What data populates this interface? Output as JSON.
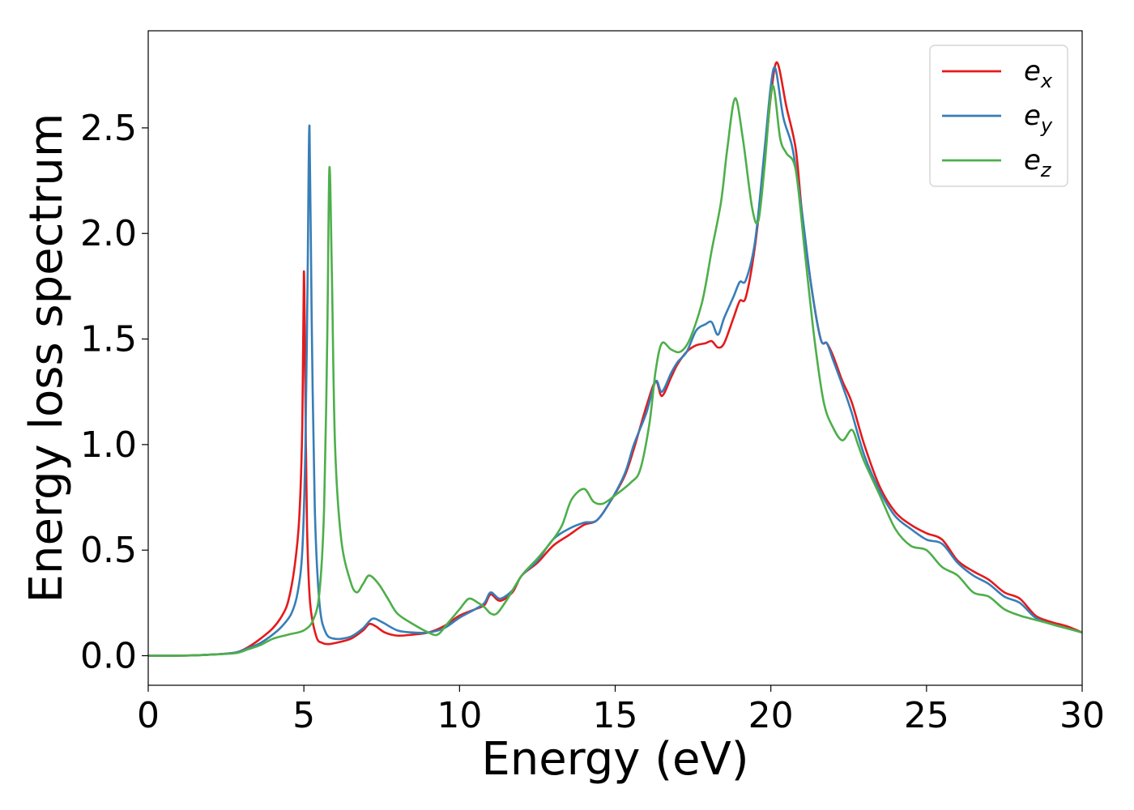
{
  "chart_data": {
    "type": "line",
    "xlabel": "Energy (eV)",
    "ylabel": "Energy loss spectrum",
    "xlim": [
      0,
      30
    ],
    "ylim": [
      -0.14,
      2.96
    ],
    "xticks": [
      0,
      5,
      10,
      15,
      20,
      25,
      30
    ],
    "xtick_labels": [
      "0",
      "5",
      "10",
      "15",
      "20",
      "25",
      "30"
    ],
    "yticks": [
      0.0,
      0.5,
      1.0,
      1.5,
      2.0,
      2.5
    ],
    "ytick_labels": [
      "0.0",
      "0.5",
      "1.0",
      "1.5",
      "2.0",
      "2.5"
    ],
    "grid": false,
    "legend_position": "top-right",
    "series": [
      {
        "name": "e",
        "subscript": "x",
        "color": "#e41a1c",
        "x": [
          0,
          1,
          2,
          2.8,
          3.2,
          3.6,
          4.0,
          4.3,
          4.5,
          4.7,
          4.85,
          4.95,
          5.0,
          5.05,
          5.1,
          5.2,
          5.4,
          5.6,
          5.8,
          6.0,
          6.5,
          6.9,
          7.1,
          7.3,
          7.6,
          8.0,
          8.5,
          9.0,
          9.5,
          10.0,
          10.5,
          10.8,
          11.0,
          11.3,
          11.7,
          12.0,
          12.5,
          13.0,
          13.5,
          14.0,
          14.4,
          14.8,
          15.3,
          15.6,
          16.0,
          16.3,
          16.5,
          16.8,
          17.0,
          17.3,
          17.6,
          17.9,
          18.1,
          18.3,
          18.5,
          18.8,
          19.0,
          19.2,
          19.5,
          19.8,
          20.0,
          20.2,
          20.5,
          20.8,
          21.0,
          21.3,
          21.6,
          21.8,
          22.0,
          22.3,
          22.6,
          23.0,
          23.5,
          24.0,
          24.5,
          25.0,
          25.5,
          26.0,
          26.5,
          27.0,
          27.5,
          28.0,
          28.5,
          29.0,
          29.5,
          30.0
        ],
        "values": [
          0.0,
          0.0,
          0.005,
          0.015,
          0.04,
          0.08,
          0.13,
          0.19,
          0.26,
          0.42,
          0.65,
          1.1,
          1.82,
          1.2,
          0.62,
          0.25,
          0.09,
          0.06,
          0.055,
          0.06,
          0.08,
          0.12,
          0.15,
          0.14,
          0.11,
          0.095,
          0.1,
          0.11,
          0.14,
          0.19,
          0.22,
          0.24,
          0.29,
          0.26,
          0.3,
          0.38,
          0.44,
          0.52,
          0.57,
          0.62,
          0.64,
          0.72,
          0.85,
          0.98,
          1.18,
          1.3,
          1.23,
          1.32,
          1.38,
          1.44,
          1.47,
          1.48,
          1.49,
          1.46,
          1.48,
          1.6,
          1.68,
          1.7,
          1.95,
          2.35,
          2.65,
          2.81,
          2.6,
          2.4,
          2.1,
          1.75,
          1.5,
          1.48,
          1.42,
          1.3,
          1.2,
          1.0,
          0.8,
          0.68,
          0.62,
          0.58,
          0.55,
          0.45,
          0.4,
          0.36,
          0.3,
          0.27,
          0.19,
          0.16,
          0.14,
          0.11
        ]
      },
      {
        "name": "e",
        "subscript": "y",
        "color": "#377eb8",
        "x": [
          0,
          1,
          2,
          2.8,
          3.2,
          3.6,
          4.0,
          4.3,
          4.6,
          4.8,
          4.95,
          5.05,
          5.12,
          5.18,
          5.25,
          5.35,
          5.5,
          5.7,
          6.0,
          6.5,
          6.9,
          7.2,
          7.5,
          8.0,
          8.5,
          9.0,
          9.5,
          10.0,
          10.5,
          10.8,
          11.0,
          11.3,
          11.7,
          12.0,
          12.5,
          13.0,
          13.5,
          14.0,
          14.4,
          14.8,
          15.3,
          15.6,
          16.0,
          16.3,
          16.5,
          16.8,
          17.0,
          17.3,
          17.6,
          17.9,
          18.1,
          18.3,
          18.5,
          18.8,
          19.0,
          19.2,
          19.5,
          19.8,
          20.0,
          20.15,
          20.4,
          20.7,
          21.0,
          21.3,
          21.6,
          21.8,
          22.0,
          22.3,
          22.6,
          23.0,
          23.5,
          24.0,
          24.5,
          25.0,
          25.5,
          26.0,
          26.5,
          27.0,
          27.5,
          28.0,
          28.5,
          29.0,
          29.5,
          30.0
        ],
        "values": [
          0.0,
          0.0,
          0.005,
          0.015,
          0.035,
          0.06,
          0.1,
          0.14,
          0.2,
          0.3,
          0.5,
          1.0,
          1.8,
          2.51,
          1.6,
          0.7,
          0.25,
          0.11,
          0.08,
          0.09,
          0.13,
          0.175,
          0.16,
          0.12,
          0.11,
          0.11,
          0.13,
          0.18,
          0.22,
          0.25,
          0.3,
          0.27,
          0.31,
          0.38,
          0.45,
          0.55,
          0.6,
          0.63,
          0.64,
          0.72,
          0.86,
          1.0,
          1.15,
          1.3,
          1.25,
          1.34,
          1.39,
          1.44,
          1.54,
          1.57,
          1.58,
          1.52,
          1.6,
          1.7,
          1.77,
          1.78,
          1.97,
          2.4,
          2.7,
          2.78,
          2.55,
          2.4,
          2.1,
          1.75,
          1.5,
          1.48,
          1.4,
          1.28,
          1.15,
          0.95,
          0.78,
          0.66,
          0.6,
          0.55,
          0.53,
          0.44,
          0.38,
          0.34,
          0.28,
          0.25,
          0.18,
          0.15,
          0.13,
          0.11
        ]
      },
      {
        "name": "e",
        "subscript": "z",
        "color": "#4daf4a",
        "x": [
          0,
          1,
          2,
          2.8,
          3.2,
          3.6,
          4.0,
          4.5,
          5.0,
          5.3,
          5.5,
          5.65,
          5.75,
          5.82,
          5.9,
          6.0,
          6.2,
          6.5,
          6.7,
          6.9,
          7.1,
          7.4,
          7.7,
          8.0,
          8.5,
          9.0,
          9.3,
          9.6,
          10.0,
          10.3,
          10.6,
          10.8,
          11.0,
          11.2,
          11.5,
          12.0,
          12.5,
          13.0,
          13.3,
          13.6,
          14.0,
          14.3,
          14.6,
          15.0,
          15.5,
          15.8,
          16.1,
          16.3,
          16.5,
          16.8,
          17.1,
          17.4,
          17.8,
          18.1,
          18.4,
          18.6,
          18.85,
          19.1,
          19.4,
          19.6,
          19.8,
          20.05,
          20.3,
          20.5,
          20.8,
          21.1,
          21.4,
          21.7,
          22.0,
          22.3,
          22.6,
          22.8,
          23.0,
          23.5,
          24.0,
          24.5,
          25.0,
          25.5,
          26.0,
          26.5,
          27.0,
          27.5,
          28.0,
          28.5,
          29.0,
          29.5,
          30.0
        ],
        "values": [
          0.0,
          0.0,
          0.005,
          0.012,
          0.03,
          0.05,
          0.08,
          0.1,
          0.12,
          0.17,
          0.3,
          0.7,
          1.5,
          2.31,
          1.8,
          1.0,
          0.55,
          0.35,
          0.3,
          0.34,
          0.38,
          0.34,
          0.27,
          0.2,
          0.15,
          0.11,
          0.1,
          0.15,
          0.22,
          0.27,
          0.25,
          0.23,
          0.2,
          0.2,
          0.26,
          0.38,
          0.46,
          0.55,
          0.62,
          0.74,
          0.79,
          0.73,
          0.72,
          0.76,
          0.82,
          0.88,
          1.1,
          1.35,
          1.48,
          1.45,
          1.44,
          1.5,
          1.68,
          1.92,
          2.15,
          2.4,
          2.64,
          2.45,
          2.12,
          2.06,
          2.32,
          2.7,
          2.45,
          2.38,
          2.3,
          1.9,
          1.5,
          1.2,
          1.08,
          1.02,
          1.07,
          1.0,
          0.92,
          0.76,
          0.6,
          0.52,
          0.5,
          0.42,
          0.38,
          0.3,
          0.28,
          0.22,
          0.19,
          0.17,
          0.15,
          0.13,
          0.11
        ]
      }
    ]
  }
}
